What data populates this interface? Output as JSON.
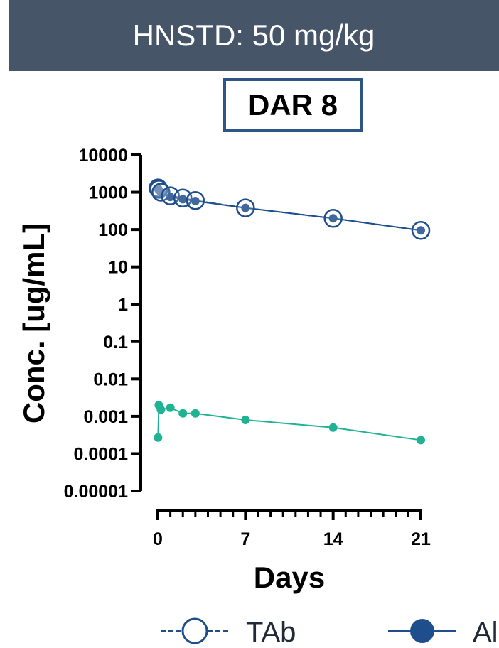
{
  "header": {
    "title": "HNSTD: 50 mg/kg"
  },
  "chart_data": {
    "type": "line",
    "subtitle": "DAR 8",
    "xlabel": "Days",
    "ylabel": "Conc. [ug/mL]",
    "yscale": "log",
    "ylim": [
      1e-05,
      10000
    ],
    "xlim": [
      0,
      21
    ],
    "x_ticks": [
      0,
      7,
      14,
      21
    ],
    "x_tick_labels": [
      "0",
      "7",
      "14",
      "21"
    ],
    "y_ticks": [
      10000,
      1000,
      100,
      10,
      1,
      0.1,
      0.01,
      0.001,
      0.0001,
      1e-05
    ],
    "y_tick_labels": [
      "10000",
      "1000",
      "100",
      "10",
      "1",
      "0.1",
      "0.01",
      "0.001",
      "0.0001",
      "0.00001"
    ],
    "grid": false,
    "legend_position": "bottom",
    "series": [
      {
        "name": "TAb",
        "style": "dashed-open-circle",
        "color": "#1f4e8c",
        "points": [
          {
            "x": 0.02,
            "y": 1300
          },
          {
            "x": 0.08,
            "y": 1200
          },
          {
            "x": 0.25,
            "y": 1000
          },
          {
            "x": 1,
            "y": 800
          },
          {
            "x": 2,
            "y": 700
          },
          {
            "x": 3,
            "y": 600
          },
          {
            "x": 7,
            "y": 380
          },
          {
            "x": 14,
            "y": 200
          },
          {
            "x": 21,
            "y": 95
          }
        ]
      },
      {
        "name": "Al",
        "style": "solid-filled-circle",
        "color": "#1f4e8c",
        "points": [
          {
            "x": 0.02,
            "y": 1250
          },
          {
            "x": 0.08,
            "y": 1150
          },
          {
            "x": 0.25,
            "y": 1000
          },
          {
            "x": 1,
            "y": 750
          },
          {
            "x": 2,
            "y": 650
          },
          {
            "x": 3,
            "y": 580
          },
          {
            "x": 7,
            "y": 380
          },
          {
            "x": 14,
            "y": 200
          },
          {
            "x": 21,
            "y": 95
          }
        ]
      },
      {
        "name": "",
        "style": "solid-filled-circle",
        "color": "#1fb394",
        "points": [
          {
            "x": 0.02,
            "y": 0.00027
          },
          {
            "x": 0.08,
            "y": 0.002
          },
          {
            "x": 0.25,
            "y": 0.0015
          },
          {
            "x": 1,
            "y": 0.0017
          },
          {
            "x": 2,
            "y": 0.0012
          },
          {
            "x": 3,
            "y": 0.0012
          },
          {
            "x": 7,
            "y": 0.0008
          },
          {
            "x": 14,
            "y": 0.0005
          },
          {
            "x": 21,
            "y": 0.00023
          }
        ]
      }
    ]
  }
}
